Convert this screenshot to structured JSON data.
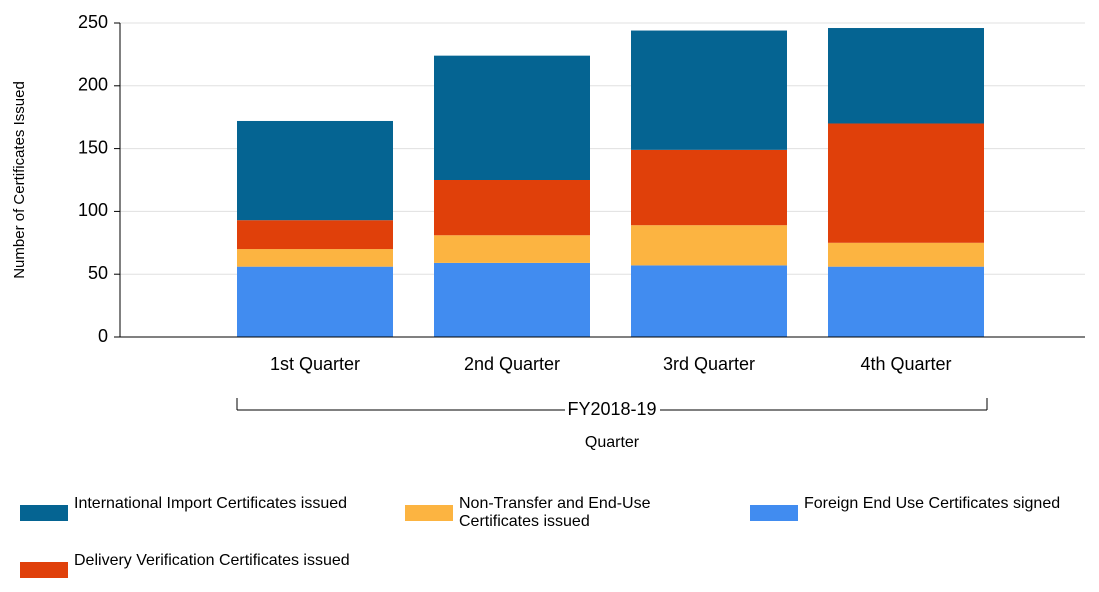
{
  "chart_data": {
    "type": "stacked_bar",
    "y_label": "Number of Certificates Issued",
    "x_label": "Quarter",
    "group_label": "FY2018-19",
    "categories": [
      "1st Quarter",
      "2nd Quarter",
      "3rd Quarter",
      "4th Quarter"
    ],
    "series": [
      {
        "name": "Foreign End Use Certificates signed",
        "color": "#418cf0",
        "values": [
          56,
          59,
          57,
          56
        ]
      },
      {
        "name": "Non-Transfer and End-Use Certificates issued",
        "color": "#fcb441",
        "values": [
          14,
          22,
          32,
          19
        ]
      },
      {
        "name": "Delivery Verification Certificates issued",
        "color": "#e0400a",
        "values": [
          23,
          44,
          60,
          95
        ]
      },
      {
        "name": "International Import Certificates issued",
        "color": "#056492",
        "values": [
          79,
          99,
          95,
          76
        ]
      }
    ],
    "ylim": [
      0,
      250
    ],
    "yticks": [
      0,
      50,
      100,
      150,
      200,
      250
    ],
    "grid": true
  }
}
